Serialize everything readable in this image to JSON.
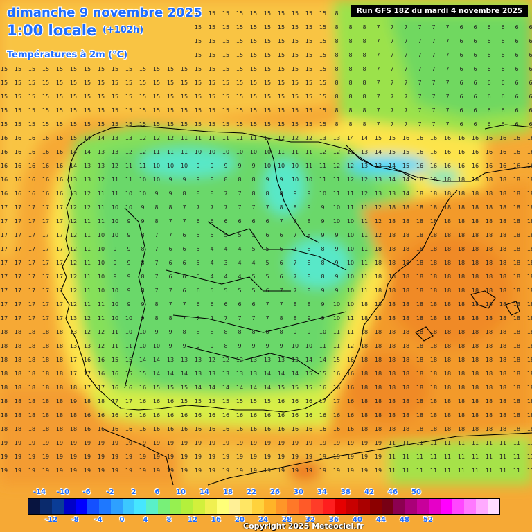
{
  "header": {
    "date_line": "dimanche 9 novembre 2025",
    "time_line": "1:00 locale",
    "offset": "(+102h)",
    "variable": "Températures à 2m (°C)"
  },
  "run_info": "Run GFS 18Z du mardi 4 novembre 2025",
  "legend": {
    "top_labels": [
      "-14",
      "-10",
      "-6",
      "-2",
      "2",
      "6",
      "10",
      "14",
      "18",
      "22",
      "26",
      "30",
      "34",
      "38",
      "42",
      "46",
      "50"
    ],
    "bottom_labels": [
      "-12",
      "-8",
      "-4",
      "0",
      "4",
      "8",
      "12",
      "16",
      "20",
      "24",
      "28",
      "32",
      "36",
      "40",
      "44",
      "48",
      "52"
    ],
    "colors": [
      "#08143f",
      "#0a2a6c",
      "#0a3c96",
      "#0000c8",
      "#0000ff",
      "#1450ff",
      "#1e78ff",
      "#2ea0ff",
      "#3cc8ff",
      "#46e6ff",
      "#5af0c8",
      "#78f078",
      "#96f050",
      "#b4f03c",
      "#d2f03c",
      "#f0f050",
      "#ffff78",
      "#fff096",
      "#ffe664",
      "#ffd23c",
      "#ffb428",
      "#ff9628",
      "#ff7828",
      "#ff5a28",
      "#ff3c28",
      "#ff1e1e",
      "#e60000",
      "#c80000",
      "#aa0000",
      "#8c0000",
      "#780014",
      "#8c0050",
      "#aa0078",
      "#c8009b",
      "#e600c8",
      "#ff00ff",
      "#ff46ff",
      "#ff78ff",
      "#ffaaff",
      "#ffdcff"
    ]
  },
  "copyright": "Copyright 2025 Meteociel.fr",
  "colors": {
    "label_blue": "#1e6cff",
    "sea_orange": "#f6a935",
    "land_green": "#7ee05a"
  }
}
